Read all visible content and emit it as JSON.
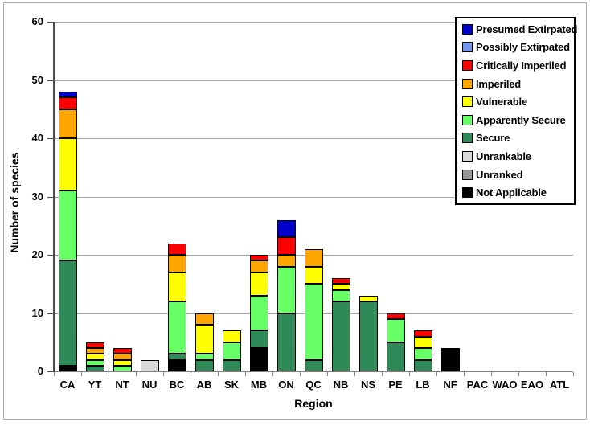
{
  "chart_data": {
    "type": "bar",
    "stacked": true,
    "title": "",
    "xlabel": "Region",
    "ylabel": "Number of species",
    "ylim": [
      0,
      60
    ],
    "ytick_step": 10,
    "grid": true,
    "legend_position": "top-right",
    "categories": [
      "CA",
      "YT",
      "NT",
      "NU",
      "BC",
      "AB",
      "SK",
      "MB",
      "ON",
      "QC",
      "NB",
      "NS",
      "PE",
      "LB",
      "NF",
      "PAC",
      "WAO",
      "EAO",
      "ATL"
    ],
    "series": [
      {
        "name": "Not Applicable",
        "color": "#000000",
        "values": [
          1,
          0,
          0,
          0,
          2,
          0,
          0,
          4,
          0,
          0,
          0,
          0,
          0,
          0,
          4,
          0,
          0,
          0,
          0
        ]
      },
      {
        "name": "Unranked",
        "color": "#969696",
        "values": [
          0,
          0,
          0,
          0,
          0,
          0,
          0,
          0,
          0,
          0,
          0,
          0,
          0,
          0,
          0,
          0,
          0,
          0,
          0
        ]
      },
      {
        "name": "Unrankable",
        "color": "#D9D9D9",
        "values": [
          0,
          0,
          0,
          2,
          0,
          0,
          0,
          0,
          0,
          0,
          0,
          0,
          0,
          0,
          0,
          0,
          0,
          0,
          0
        ]
      },
      {
        "name": "Secure",
        "color": "#2E8B57",
        "values": [
          18,
          1,
          0,
          0,
          1,
          2,
          2,
          3,
          10,
          2,
          12,
          12,
          5,
          2,
          0,
          0,
          0,
          0,
          0
        ]
      },
      {
        "name": "Apparently Secure",
        "color": "#66FF66",
        "values": [
          12,
          1,
          1,
          0,
          9,
          1,
          3,
          6,
          8,
          13,
          2,
          0,
          4,
          2,
          0,
          0,
          0,
          0,
          0
        ]
      },
      {
        "name": "Vulnerable",
        "color": "#FFFF00",
        "values": [
          9,
          1,
          1,
          0,
          5,
          5,
          2,
          4,
          0,
          3,
          1,
          1,
          0,
          2,
          0,
          0,
          0,
          0,
          0
        ]
      },
      {
        "name": "Imperiled",
        "color": "#FFA500",
        "values": [
          5,
          1,
          1,
          0,
          3,
          2,
          0,
          2,
          2,
          3,
          0,
          0,
          0,
          0,
          0,
          0,
          0,
          0,
          0
        ]
      },
      {
        "name": "Critically Imperiled",
        "color": "#FF0000",
        "values": [
          2,
          1,
          1,
          0,
          2,
          0,
          0,
          1,
          3,
          0,
          1,
          0,
          1,
          1,
          0,
          0,
          0,
          0,
          0
        ]
      },
      {
        "name": "Possibly Extirpated",
        "color": "#7396EC",
        "values": [
          0,
          0,
          0,
          0,
          0,
          0,
          0,
          0,
          0,
          0,
          0,
          0,
          0,
          0,
          0,
          0,
          0,
          0,
          0
        ]
      },
      {
        "name": "Presumed Extirpated",
        "color": "#0000CC",
        "values": [
          1,
          0,
          0,
          0,
          0,
          0,
          0,
          0,
          3,
          0,
          0,
          0,
          0,
          0,
          0,
          0,
          0,
          0,
          0
        ]
      }
    ]
  }
}
